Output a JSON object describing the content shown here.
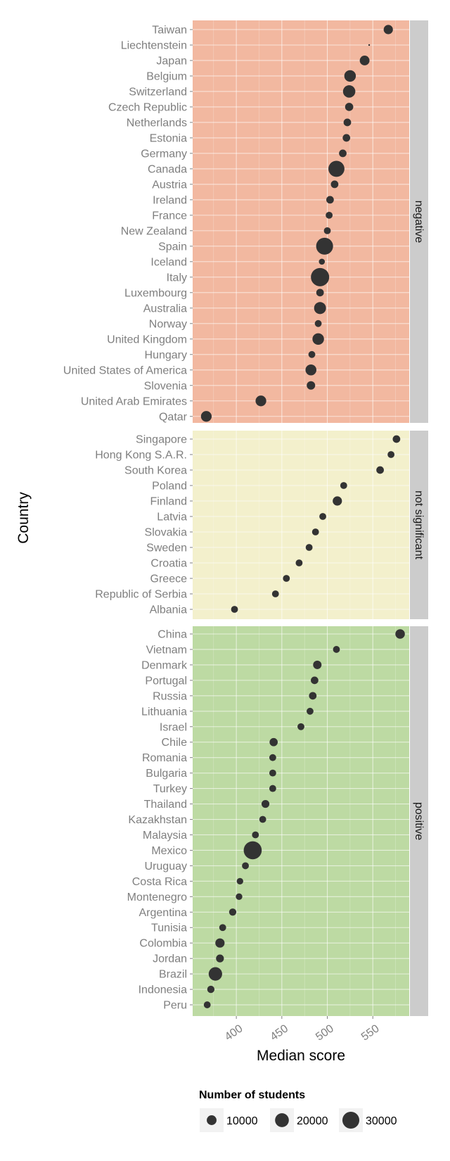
{
  "chart_data": {
    "type": "scatter",
    "xlabel": "Median score",
    "ylabel": "Country",
    "xlim": [
      352,
      590
    ],
    "x_ticks": [
      400,
      450,
      500,
      550
    ],
    "grid": true,
    "colors": {
      "negative": "#f2b8a0",
      "not significant": "#f3f0cc",
      "positive": "#bddaa3",
      "strip": "#cccccc",
      "point": "#333333",
      "gridline": "#ffffff"
    },
    "legend": {
      "title": "Number of students",
      "position": "bottom",
      "entries": [
        {
          "label": "10000",
          "value": 10000
        },
        {
          "label": "20000",
          "value": 20000
        },
        {
          "label": "30000",
          "value": 30000
        }
      ]
    },
    "panels": [
      {
        "name": "negative",
        "points": [
          {
            "country": "Taiwan",
            "score": 567,
            "students": 9000
          },
          {
            "country": "Liechtenstein",
            "score": 546,
            "students": 300
          },
          {
            "country": "Japan",
            "score": 541,
            "students": 10000
          },
          {
            "country": "Belgium",
            "score": 525,
            "students": 14000
          },
          {
            "country": "Switzerland",
            "score": 524,
            "students": 16000
          },
          {
            "country": "Czech Republic",
            "score": 524,
            "students": 7000
          },
          {
            "country": "Netherlands",
            "score": 522,
            "students": 6000
          },
          {
            "country": "Estonia",
            "score": 521,
            "students": 6000
          },
          {
            "country": "Germany",
            "score": 517,
            "students": 6000
          },
          {
            "country": "Canada",
            "score": 510,
            "students": 27000
          },
          {
            "country": "Austria",
            "score": 508,
            "students": 6000
          },
          {
            "country": "Ireland",
            "score": 503,
            "students": 6000
          },
          {
            "country": "France",
            "score": 502,
            "students": 5000
          },
          {
            "country": "New Zealand",
            "score": 500,
            "students": 5000
          },
          {
            "country": "Spain",
            "score": 497,
            "students": 30000
          },
          {
            "country": "Iceland",
            "score": 494,
            "students": 3800
          },
          {
            "country": "Italy",
            "score": 492,
            "students": 35000
          },
          {
            "country": "Luxembourg",
            "score": 492,
            "students": 6000
          },
          {
            "country": "Australia",
            "score": 492,
            "students": 15000
          },
          {
            "country": "Norway",
            "score": 490,
            "students": 5000
          },
          {
            "country": "United Kingdom",
            "score": 490,
            "students": 14000
          },
          {
            "country": "Hungary",
            "score": 483,
            "students": 5000
          },
          {
            "country": "United States of America",
            "score": 482,
            "students": 12500
          },
          {
            "country": "Slovenia",
            "score": 482,
            "students": 7500
          },
          {
            "country": "United Arab Emirates",
            "score": 427,
            "students": 12000
          },
          {
            "country": "Qatar",
            "score": 367,
            "students": 12000
          }
        ]
      },
      {
        "name": "not significant",
        "points": [
          {
            "country": "Singapore",
            "score": 576,
            "students": 6000
          },
          {
            "country": "Hong Kong S.A.R.",
            "score": 570,
            "students": 5000
          },
          {
            "country": "South Korea",
            "score": 558,
            "students": 6000
          },
          {
            "country": "Poland",
            "score": 518,
            "students": 5000
          },
          {
            "country": "Finland",
            "score": 511,
            "students": 9000
          },
          {
            "country": "Latvia",
            "score": 495,
            "students": 5000
          },
          {
            "country": "Slovakia",
            "score": 487,
            "students": 5000
          },
          {
            "country": "Sweden",
            "score": 480,
            "students": 5000
          },
          {
            "country": "Croatia",
            "score": 469,
            "students": 5000
          },
          {
            "country": "Greece",
            "score": 455,
            "students": 5000
          },
          {
            "country": "Republic of Serbia",
            "score": 443,
            "students": 5000
          },
          {
            "country": "Albania",
            "score": 398,
            "students": 5000
          }
        ]
      },
      {
        "name": "positive",
        "points": [
          {
            "country": "China",
            "score": 580,
            "students": 9500
          },
          {
            "country": "Vietnam",
            "score": 510,
            "students": 5000
          },
          {
            "country": "Denmark",
            "score": 489,
            "students": 7500
          },
          {
            "country": "Portugal",
            "score": 486,
            "students": 6000
          },
          {
            "country": "Russia",
            "score": 484,
            "students": 6000
          },
          {
            "country": "Lithuania",
            "score": 481,
            "students": 5000
          },
          {
            "country": "Israel",
            "score": 471,
            "students": 5000
          },
          {
            "country": "Chile",
            "score": 441,
            "students": 7000
          },
          {
            "country": "Romania",
            "score": 440,
            "students": 5000
          },
          {
            "country": "Bulgaria",
            "score": 440,
            "students": 5000
          },
          {
            "country": "Turkey",
            "score": 440,
            "students": 5000
          },
          {
            "country": "Thailand",
            "score": 432,
            "students": 6500
          },
          {
            "country": "Kazakhstan",
            "score": 429,
            "students": 5000
          },
          {
            "country": "Malaysia",
            "score": 421,
            "students": 5000
          },
          {
            "country": "Mexico",
            "score": 418,
            "students": 34000
          },
          {
            "country": "Uruguay",
            "score": 410,
            "students": 5000
          },
          {
            "country": "Costa Rica",
            "score": 404,
            "students": 4500
          },
          {
            "country": "Montenegro",
            "score": 403,
            "students": 4500
          },
          {
            "country": "Argentina",
            "score": 396,
            "students": 5500
          },
          {
            "country": "Tunisia",
            "score": 385,
            "students": 5000
          },
          {
            "country": "Colombia",
            "score": 382,
            "students": 9000
          },
          {
            "country": "Jordan",
            "score": 382,
            "students": 6500
          },
          {
            "country": "Brazil",
            "score": 377,
            "students": 19000
          },
          {
            "country": "Indonesia",
            "score": 372,
            "students": 5500
          },
          {
            "country": "Peru",
            "score": 368,
            "students": 5000
          }
        ]
      }
    ]
  }
}
